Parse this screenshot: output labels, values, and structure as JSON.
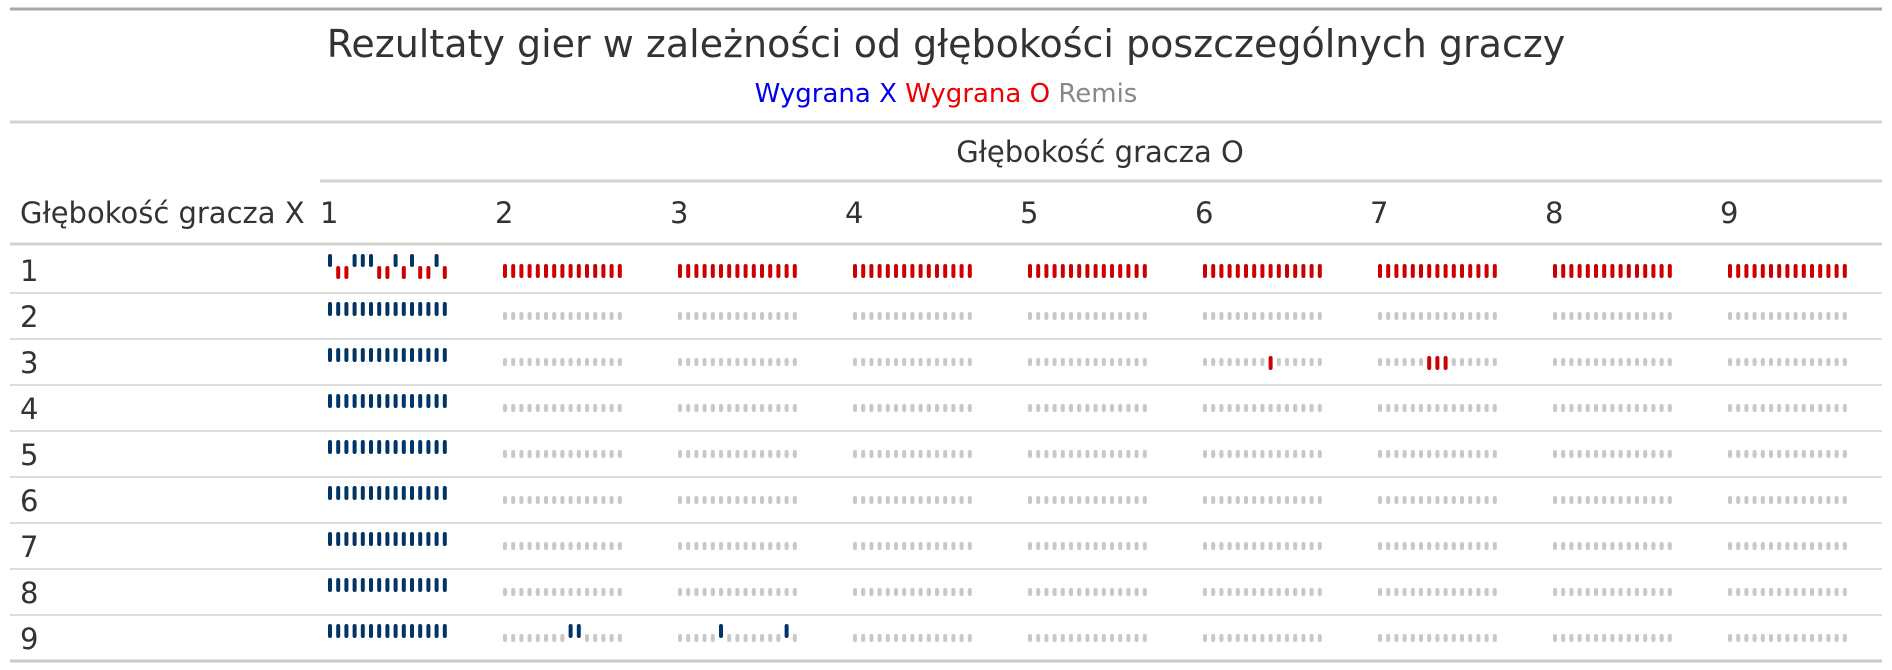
{
  "colors": {
    "x_win": "#003366",
    "o_win": "#CC0000",
    "draw": "#C8C8C8",
    "legend_x": "#0000EE",
    "legend_o": "#EE0000",
    "legend_draw": "#888888",
    "rule": "#D3D3D3"
  },
  "chart_data": {
    "type": "table",
    "title": "Rezultaty gier w zależności od głębokości poszczególnych graczy",
    "legend": [
      {
        "key": "X",
        "label": "Wygrana X"
      },
      {
        "key": "O",
        "label": "Wygrana O"
      },
      {
        "key": "D",
        "label": "Remis"
      }
    ],
    "column_spanner": "Głębokość gracza O",
    "row_header": "Głębokość gracza X",
    "columns": [
      "1",
      "2",
      "3",
      "4",
      "5",
      "6",
      "7",
      "8",
      "9"
    ],
    "rows": [
      {
        "label": "1",
        "cells": [
          "XOOXXXOOXOXOOXO",
          "OOOOOOOOOOOOOOO",
          "OOOOOOOOOOOOOOO",
          "OOOOOOOOOOOOOOO",
          "OOOOOOOOOOOOOOO",
          "OOOOOOOOOOOOOOO",
          "OOOOOOOOOOOOOOO",
          "OOOOOOOOOOOOOOO",
          "OOOOOOOOOOOOOOO"
        ]
      },
      {
        "label": "2",
        "cells": [
          "XXXXXXXXXXXXXXX",
          "DDDDDDDDDDDDDDD",
          "DDDDDDDDDDDDDDD",
          "DDDDDDDDDDDDDDD",
          "DDDDDDDDDDDDDDD",
          "DDDDDDDDDDDDDDD",
          "DDDDDDDDDDDDDDD",
          "DDDDDDDDDDDDDDD",
          "DDDDDDDDDDDDDDD"
        ]
      },
      {
        "label": "3",
        "cells": [
          "XXXXXXXXXXXXXXX",
          "DDDDDDDDDDDDDDD",
          "DDDDDDDDDDDDDDD",
          "DDDDDDDDDDDDDDD",
          "DDDDDDDDDDDDDDD",
          "DDDDDDDDODDDDDD",
          "DDDDDDOOODDDDDD",
          "DDDDDDDDDDDDDDD",
          "DDDDDDDDDDDDDDD"
        ]
      },
      {
        "label": "4",
        "cells": [
          "XXXXXXXXXXXXXXX",
          "DDDDDDDDDDDDDDD",
          "DDDDDDDDDDDDDDD",
          "DDDDDDDDDDDDDDD",
          "DDDDDDDDDDDDDDD",
          "DDDDDDDDDDDDDDD",
          "DDDDDDDDDDDDDDD",
          "DDDDDDDDDDDDDDD",
          "DDDDDDDDDDDDDDD"
        ]
      },
      {
        "label": "5",
        "cells": [
          "XXXXXXXXXXXXXXX",
          "DDDDDDDDDDDDDDD",
          "DDDDDDDDDDDDDDD",
          "DDDDDDDDDDDDDDD",
          "DDDDDDDDDDDDDDD",
          "DDDDDDDDDDDDDDD",
          "DDDDDDDDDDDDDDD",
          "DDDDDDDDDDDDDDD",
          "DDDDDDDDDDDDDDD"
        ]
      },
      {
        "label": "6",
        "cells": [
          "XXXXXXXXXXXXXXX",
          "DDDDDDDDDDDDDDD",
          "DDDDDDDDDDDDDDD",
          "DDDDDDDDDDDDDDD",
          "DDDDDDDDDDDDDDD",
          "DDDDDDDDDDDDDDD",
          "DDDDDDDDDDDDDDD",
          "DDDDDDDDDDDDDDD",
          "DDDDDDDDDDDDDDD"
        ]
      },
      {
        "label": "7",
        "cells": [
          "XXXXXXXXXXXXXXX",
          "DDDDDDDDDDDDDDD",
          "DDDDDDDDDDDDDDD",
          "DDDDDDDDDDDDDDD",
          "DDDDDDDDDDDDDDD",
          "DDDDDDDDDDDDDDD",
          "DDDDDDDDDDDDDDD",
          "DDDDDDDDDDDDDDD",
          "DDDDDDDDDDDDDDD"
        ]
      },
      {
        "label": "8",
        "cells": [
          "XXXXXXXXXXXXXXX",
          "DDDDDDDDDDDDDDD",
          "DDDDDDDDDDDDDDD",
          "DDDDDDDDDDDDDDD",
          "DDDDDDDDDDDDDDD",
          "DDDDDDDDDDDDDDD",
          "DDDDDDDDDDDDDDD",
          "DDDDDDDDDDDDDDD",
          "DDDDDDDDDDDDDDD"
        ]
      },
      {
        "label": "9",
        "cells": [
          "XXXXXXXXXXXXXXX",
          "DDDDDDDDXXDDDDD",
          "DDDDDXDDDDDDDXD",
          "DDDDDDDDDDDDDDD",
          "DDDDDDDDDDDDDDD",
          "DDDDDDDDDDDDDDD",
          "DDDDDDDDDDDDDDD",
          "DDDDDDDDDDDDDDD",
          "DDDDDDDDDDDDDDD"
        ]
      }
    ]
  }
}
